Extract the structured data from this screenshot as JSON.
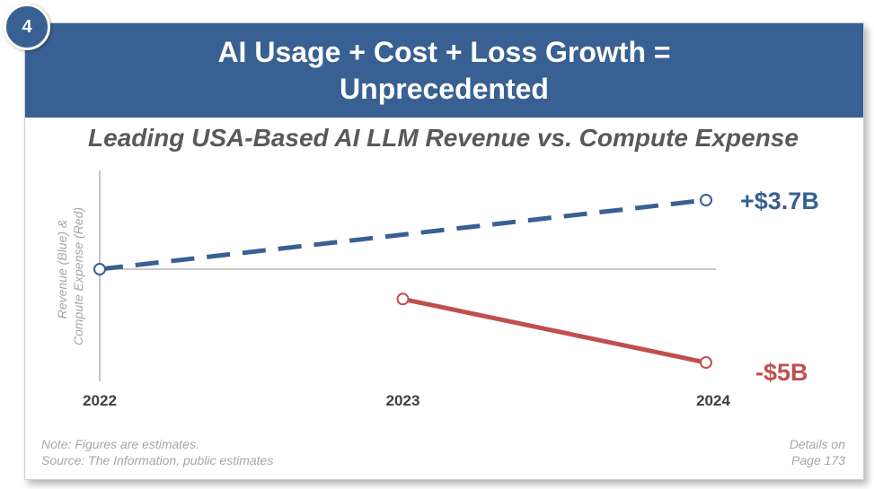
{
  "badge": "4",
  "header": {
    "line1": "AI Usage + Cost + Loss Growth =",
    "line2": "Unprecedented"
  },
  "chart_data": {
    "type": "line",
    "title": "Leading USA-Based AI LLM Revenue vs. Compute Expense",
    "ylabel_line1": "Revenue (Blue) &",
    "ylabel_line2": "Compute Expense (Red)",
    "categories": [
      "2022",
      "2023",
      "2024"
    ],
    "ylim": [
      -5.5,
      4.5
    ],
    "series": [
      {
        "name": "Revenue",
        "color": "#386092",
        "dashed": true,
        "points": [
          [
            0,
            0
          ],
          [
            2,
            3.7
          ]
        ],
        "end_label": "+$3.7B"
      },
      {
        "name": "Compute Expense",
        "color": "#c0504d",
        "dashed": false,
        "points": [
          [
            1,
            -1.6
          ],
          [
            2,
            -5
          ]
        ],
        "end_label": "-$5B"
      }
    ]
  },
  "footer": {
    "note_line1": "Note: Figures are estimates.",
    "note_line2": "Source: The Information, public estimates",
    "details_line1": "Details on",
    "details_line2": "Page 173"
  }
}
